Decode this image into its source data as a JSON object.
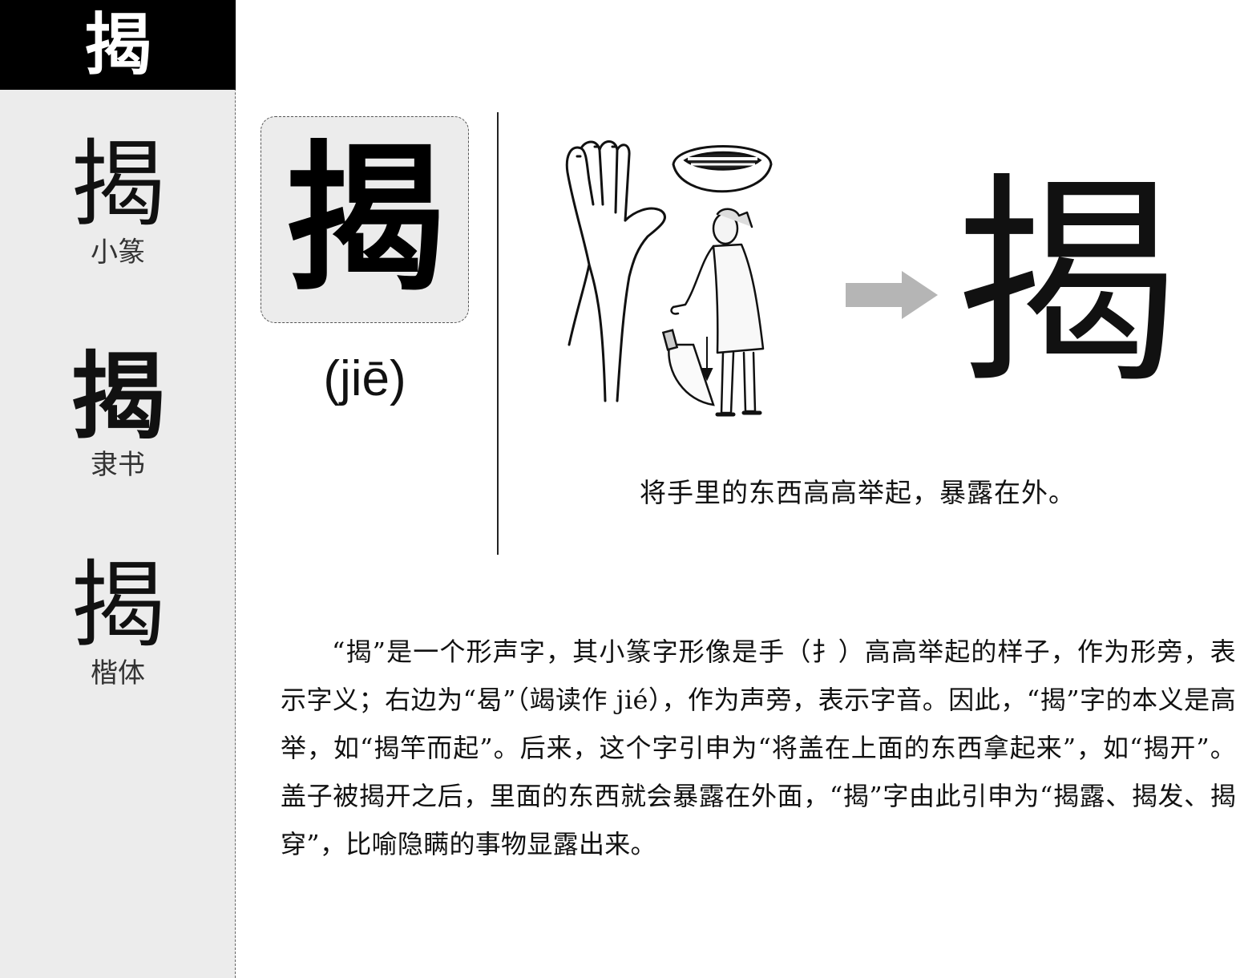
{
  "sidebar": {
    "header_char": "揭",
    "variants": [
      {
        "glyph": "揭",
        "label": "小篆"
      },
      {
        "glyph": "揭",
        "label": "隶书"
      },
      {
        "glyph": "揭",
        "label": "楷体"
      }
    ]
  },
  "main": {
    "character": "揭",
    "pinyin": "(jiē)",
    "illustration_icon": "hand-mouth-man-with-knife-illustration",
    "arrow_icon": "right-arrow-icon",
    "arrow_color": "#b5b5b5",
    "seal_character": "揭",
    "caption": "将手里的东西高高举起，暴露在外。",
    "explanation": "“揭”是一个形声字，其小篆字形像是手（扌）高高举起的样子，作为形旁，表示字义；右边为“曷”（竭读作 jié），作为声旁，表示字音。因此，“揭”字的本义是高举，如“揭竿而起”。后来，这个字引申为“将盖在上面的东西拿起来”，如“揭开”。盖子被揭开之后，里面的东西就会暴露在外面，“揭”字由此引申为“揭露、揭发、揭穿”，比喻隐瞒的事物显露出来。"
  }
}
